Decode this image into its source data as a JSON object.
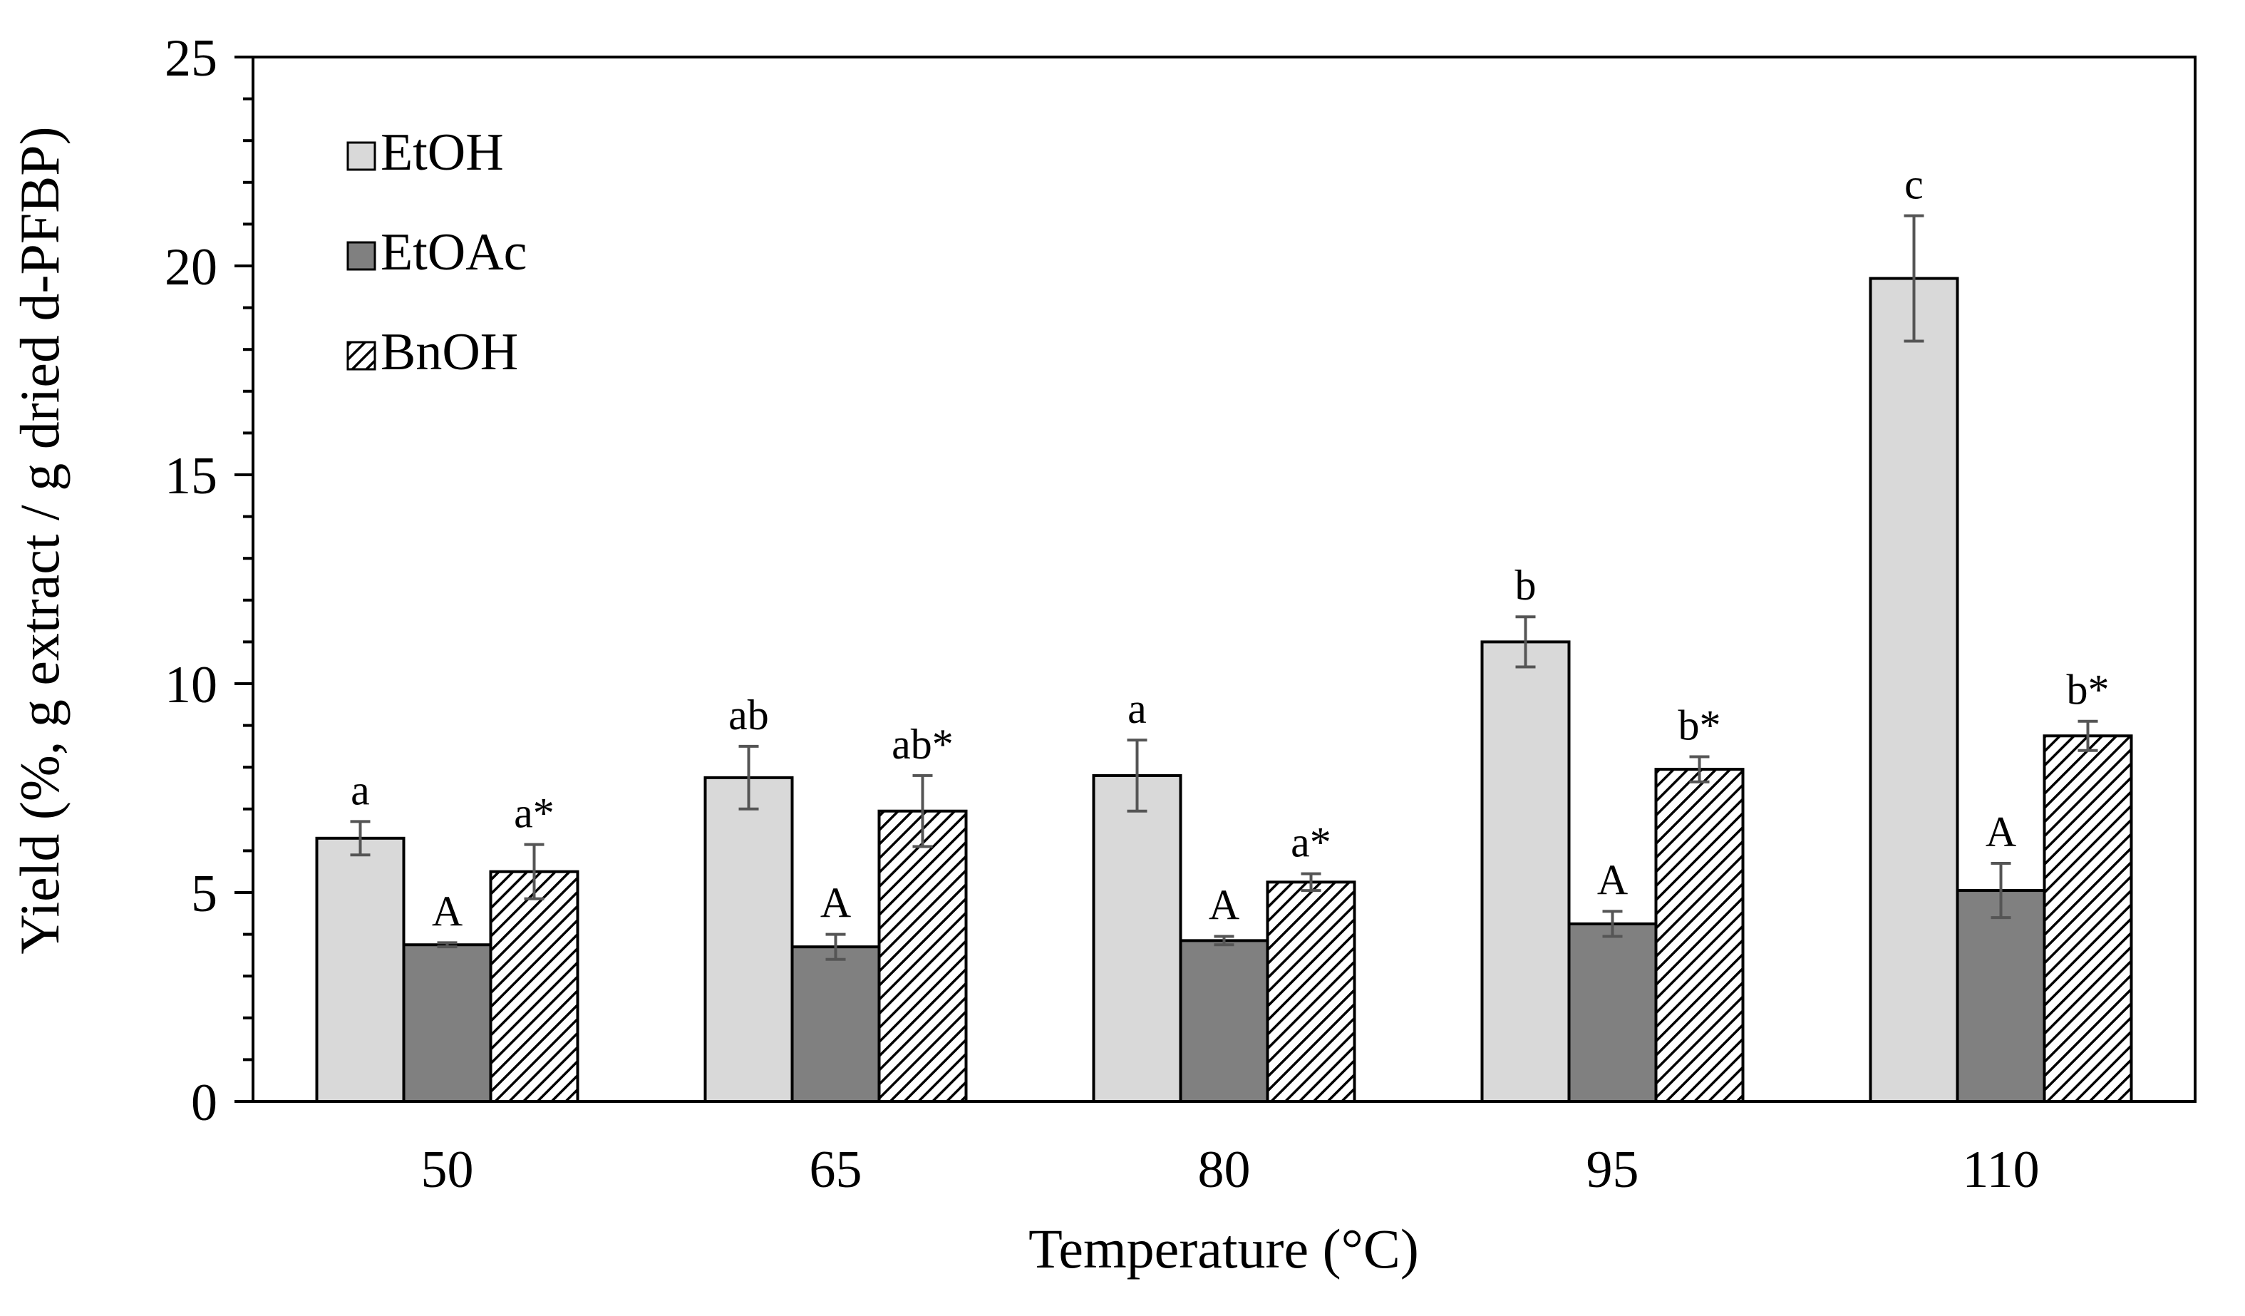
{
  "chart_data": {
    "type": "bar",
    "title": "",
    "xlabel": "Temperature (°C)",
    "ylabel": "Yield (%, g extract / g dried d-PFBP)",
    "ylim": [
      0,
      25
    ],
    "yticks": [
      "0",
      "5",
      "10",
      "15",
      "20",
      "25"
    ],
    "categories": [
      "50",
      "65",
      "80",
      "95",
      "110"
    ],
    "grid": false,
    "legend_position": "top-left",
    "series": [
      {
        "name": "EtOH",
        "fill": "#d9d9d9",
        "pattern": "solid",
        "values": [
          6.3,
          7.75,
          7.8,
          11.0,
          19.7
        ],
        "errors": [
          0.4,
          0.75,
          0.85,
          0.6,
          1.5
        ],
        "labels": [
          "a",
          "ab",
          "a",
          "b",
          "c"
        ]
      },
      {
        "name": "EtOAc",
        "fill": "#808080",
        "pattern": "solid",
        "values": [
          3.75,
          3.7,
          3.85,
          4.25,
          5.05
        ],
        "errors": [
          0.05,
          0.3,
          0.1,
          0.3,
          0.65
        ],
        "labels": [
          "A",
          "A",
          "A",
          "A",
          "A"
        ]
      },
      {
        "name": "BnOH",
        "fill": "#ffffff",
        "pattern": "diagonal-hatch",
        "values": [
          5.5,
          6.95,
          5.25,
          7.95,
          8.75
        ],
        "errors": [
          0.65,
          0.85,
          0.2,
          0.3,
          0.35
        ],
        "labels": [
          "a*",
          "ab*",
          "a*",
          "b*",
          "b*"
        ]
      }
    ]
  }
}
